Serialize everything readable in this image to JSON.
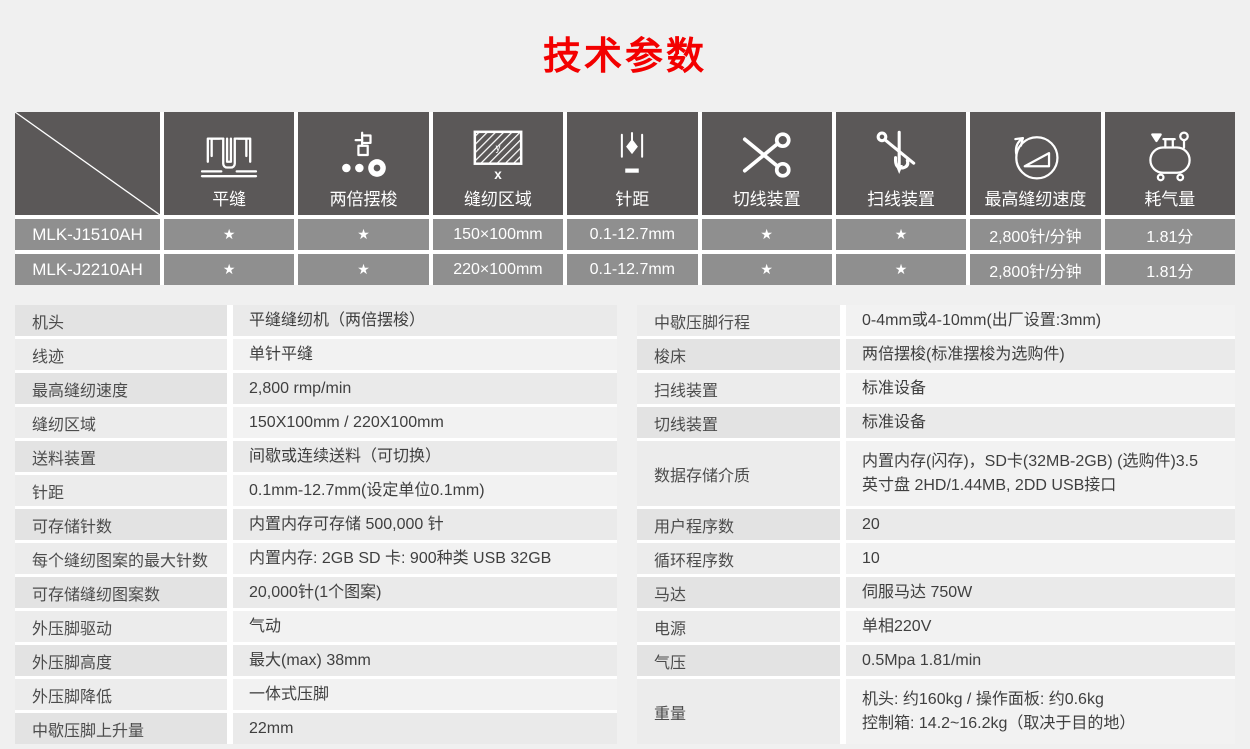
{
  "page": {
    "title": "技术参数"
  },
  "colors": {
    "title_red": "#f30000",
    "header_dark": "#5b5858",
    "row_gray": "#8f8f8f",
    "page_bg": "#f0f0f0"
  },
  "matrix": {
    "columns": [
      {
        "label": "平缝",
        "icon": "flat-seam-icon"
      },
      {
        "label": "两倍摆梭",
        "icon": "double-shuttle-icon"
      },
      {
        "label": "缝纫区域",
        "icon": "sewing-area-icon"
      },
      {
        "label": "针距",
        "icon": "stitch-length-icon"
      },
      {
        "label": "切线装置",
        "icon": "thread-trimmer-icon"
      },
      {
        "label": "扫线装置",
        "icon": "thread-wiper-icon"
      },
      {
        "label": "最高缝纫速度",
        "icon": "max-speed-icon"
      },
      {
        "label": "耗气量",
        "icon": "air-consumption-icon"
      }
    ],
    "rows": [
      {
        "model": "MLK-J1510AH",
        "cells": [
          "★",
          "★",
          "150×100mm",
          "0.1-12.7mm",
          "★",
          "★",
          "2,800针/分钟",
          "1.81分"
        ]
      },
      {
        "model": "MLK-J2210AH",
        "cells": [
          "★",
          "★",
          "220×100mm",
          "0.1-12.7mm",
          "★",
          "★",
          "2,800针/分钟",
          "1.81分"
        ]
      }
    ]
  },
  "specs_left": {
    "rows": [
      {
        "label": "机头",
        "value": "平缝缝纫机（两倍摆梭）"
      },
      {
        "label": "线迹",
        "value": "单针平缝"
      },
      {
        "label": "最高缝纫速度",
        "value": "2,800 rmp/min"
      },
      {
        "label": "缝纫区域",
        "value": "150X100mm / 220X100mm"
      },
      {
        "label": "送料装置",
        "value": "间歇或连续送料（可切换）"
      },
      {
        "label": "针距",
        "value": "0.1mm-12.7mm(设定单位0.1mm)"
      },
      {
        "label": "可存储针数",
        "value": "内置内存可存储 500,000 针"
      },
      {
        "label": "每个缝纫图案的最大针数",
        "value": "内置内存: 2GB  SD 卡: 900种类 USB 32GB"
      },
      {
        "label": "可存储缝纫图案数",
        "value": "20,000针(1个图案)"
      },
      {
        "label": "外压脚驱动",
        "value": "气动"
      },
      {
        "label": "外压脚高度",
        "value": "最大(max) 38mm"
      },
      {
        "label": "外压脚降低",
        "value": "一体式压脚"
      },
      {
        "label": "中歇压脚上升量",
        "value": "22mm"
      }
    ]
  },
  "specs_right": {
    "rows": [
      {
        "label": "中歇压脚行程",
        "value": "0-4mm或4-10mm(出厂设置:3mm)"
      },
      {
        "label": "梭床",
        "value": "两倍摆梭(标准摆梭为选购件)"
      },
      {
        "label": "扫线装置",
        "value": "标准设备"
      },
      {
        "label": "切线装置",
        "value": "标准设备"
      },
      {
        "label": "数据存储介质",
        "value": "内置内存(闪存)，SD卡(32MB-2GB) (选购件)3.5\n英寸盘  2HD/1.44MB, 2DD  USB接口"
      },
      {
        "label": "用户程序数",
        "value": "20"
      },
      {
        "label": "循环程序数",
        "value": "10"
      },
      {
        "label": "马达",
        "value": "伺服马达 750W"
      },
      {
        "label": "电源",
        "value": "单相220V"
      },
      {
        "label": "气压",
        "value": "0.5Mpa 1.81/min"
      },
      {
        "label": "重量",
        "value": "机头: 约160kg  /  操作面板: 约0.6kg\n控制箱: 14.2~16.2kg（取决于目的地）"
      }
    ]
  }
}
